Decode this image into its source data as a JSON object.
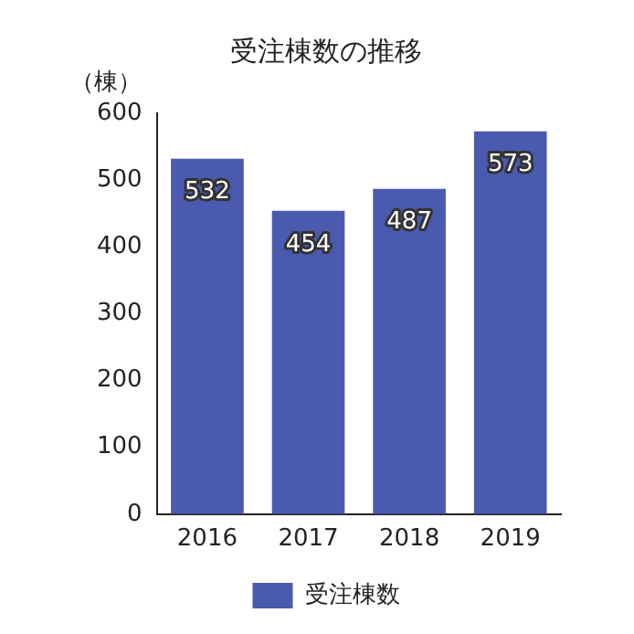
{
  "chart_data": {
    "type": "bar",
    "title": "受注棟数の推移",
    "ylabel": "（棟）",
    "categories": [
      "2016",
      "2017",
      "2018",
      "2019"
    ],
    "series": [
      {
        "name": "受注棟数",
        "color": "#4a5aae",
        "values": [
          532,
          454,
          487,
          573
        ]
      }
    ],
    "ylim": [
      0,
      600
    ],
    "yticks": [
      0,
      100,
      200,
      300,
      400,
      500,
      600
    ],
    "grid": false,
    "legend": "bottom",
    "data_labels": true
  }
}
